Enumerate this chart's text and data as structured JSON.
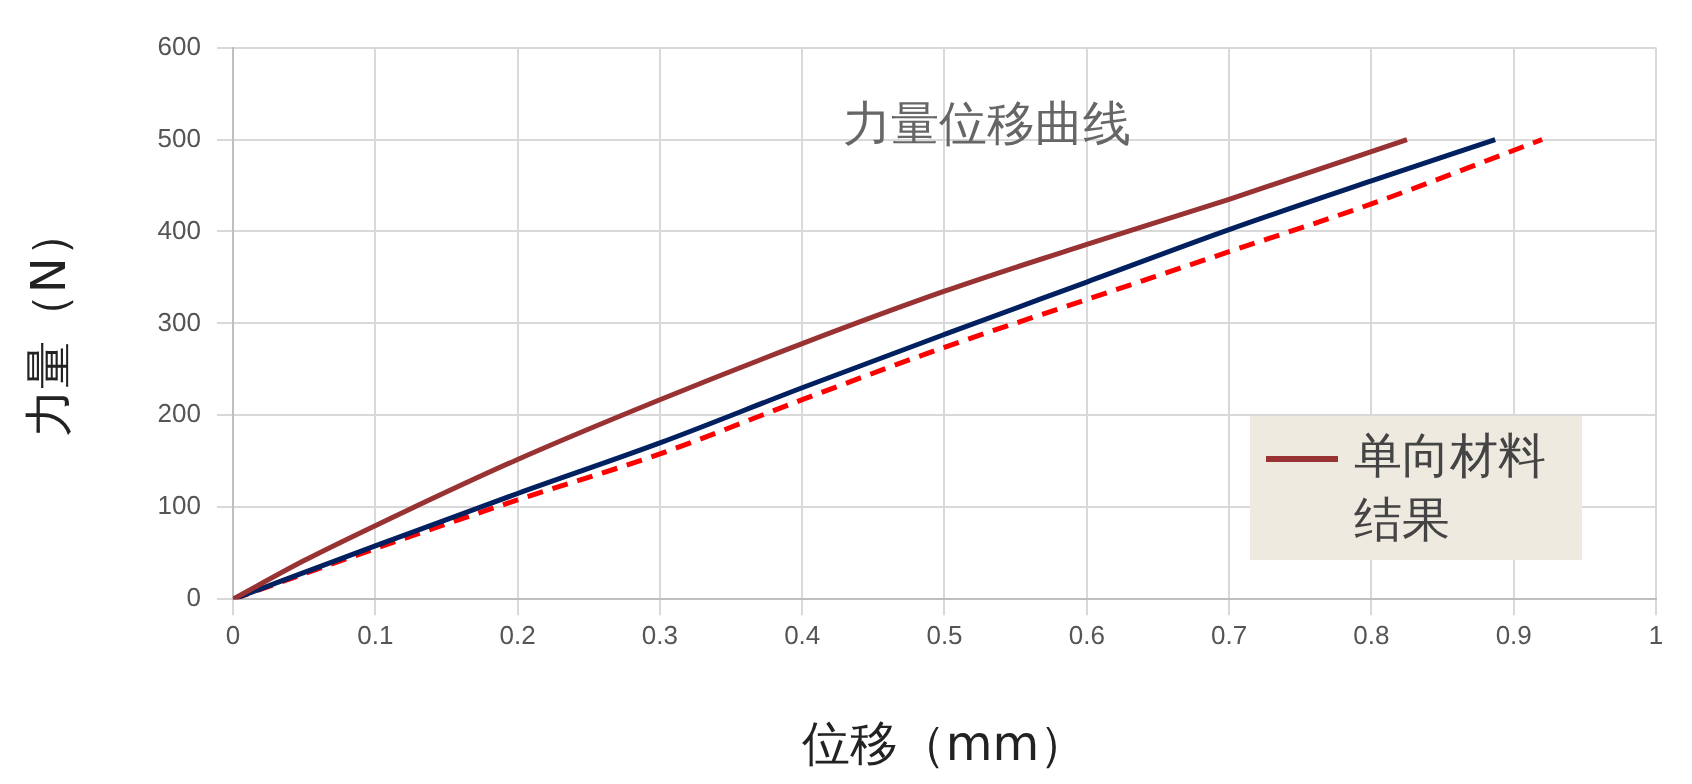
{
  "chart_data": {
    "type": "line",
    "title": "力量位移曲线",
    "xlabel": "位移（mm）",
    "ylabel": "力量（N）",
    "xlim": [
      0,
      1
    ],
    "xticks": [
      0,
      0.1,
      0.2,
      0.3,
      0.4,
      0.5,
      0.6,
      0.7,
      0.8,
      0.9,
      1
    ],
    "ylim": [
      0,
      600
    ],
    "yticks": [
      0,
      100,
      200,
      300,
      400,
      500,
      600
    ],
    "grid": true,
    "legend": "bottom right",
    "marker": "none",
    "series": [
      {
        "name": "单向材料结果",
        "color": "#993333",
        "line_style": "solid",
        "x": [
          0,
          0.05,
          0.1,
          0.2,
          0.3,
          0.4,
          0.5,
          0.6,
          0.7,
          0.825
        ],
        "values": [
          0,
          42,
          80,
          152,
          217,
          278,
          335,
          386,
          435,
          500
        ]
      },
      {
        "color": "#002060",
        "line_style": "solid",
        "x": [
          0,
          0.1,
          0.2,
          0.3,
          0.4,
          0.5,
          0.6,
          0.7,
          0.8,
          0.887
        ],
        "values": [
          0,
          58,
          115,
          170,
          230,
          288,
          345,
          402,
          455,
          500
        ]
      },
      {
        "color": "#ff0000",
        "line_style": "dashed",
        "x": [
          0,
          0.1,
          0.2,
          0.3,
          0.4,
          0.5,
          0.6,
          0.7,
          0.8,
          0.92
        ],
        "values": [
          0,
          55,
          108,
          158,
          217,
          274,
          326,
          378,
          430,
          500
        ]
      }
    ]
  }
}
